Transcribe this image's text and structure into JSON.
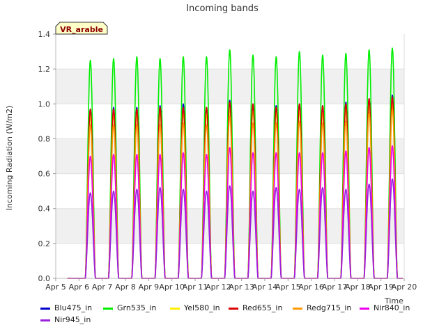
{
  "chart_data": {
    "type": "line",
    "title": "Incoming bands",
    "ylabel": "Incoming Radiation (W/m2)",
    "xlabel": "Time",
    "station_tag": "VR_arable",
    "ylim": [
      0,
      1.4
    ],
    "yticks": [
      "0.0",
      "0.2",
      "0.4",
      "0.6",
      "0.8",
      "1.0",
      "1.2",
      "1.4"
    ],
    "xticks": [
      "Apr 5",
      "Apr 6",
      "Apr 7",
      "Apr 8",
      "Apr 9",
      "Apr 10",
      "Apr 11",
      "Apr 12",
      "Apr 13",
      "Apr 14",
      "Apr 15",
      "Apr 16",
      "Apr 17",
      "Apr 18",
      "Apr 19",
      "Apr 20"
    ],
    "x_start_day": 5,
    "x_end_day": 20,
    "grid": "horizontal bands",
    "legend_position": "bottom",
    "days": [
      6,
      7,
      8,
      9,
      10,
      11,
      12,
      13,
      14,
      15,
      16,
      17,
      18,
      19
    ],
    "series": [
      {
        "name": "Blu475_in",
        "color": "#0000cc",
        "peaks": [
          0.97,
          0.98,
          0.98,
          0.99,
          1.0,
          0.98,
          1.02,
          1.0,
          0.99,
          1.0,
          0.99,
          1.01,
          1.03,
          1.05
        ]
      },
      {
        "name": "Grn535_in",
        "color": "#00ee00",
        "peaks": [
          1.25,
          1.26,
          1.27,
          1.26,
          1.27,
          1.27,
          1.31,
          1.28,
          1.27,
          1.3,
          1.28,
          1.29,
          1.31,
          1.32
        ]
      },
      {
        "name": "Yel580_in",
        "color": "#ffee00",
        "peaks": [
          0.93,
          0.94,
          0.94,
          0.95,
          0.95,
          0.94,
          0.97,
          0.96,
          0.95,
          0.96,
          0.95,
          0.97,
          0.99,
          1.0
        ]
      },
      {
        "name": "Red655_in",
        "color": "#dd0000",
        "peaks": [
          0.97,
          0.97,
          0.97,
          0.98,
          0.98,
          0.98,
          1.01,
          1.0,
          0.98,
          1.0,
          0.99,
          1.0,
          1.03,
          1.04
        ]
      },
      {
        "name": "Redg715_in",
        "color": "#ff9900",
        "peaks": [
          0.88,
          0.88,
          0.88,
          0.88,
          0.89,
          0.88,
          0.93,
          0.89,
          0.89,
          0.9,
          0.89,
          0.9,
          0.95,
          0.97
        ]
      },
      {
        "name": "Nir840_in",
        "color": "#ee00ee",
        "peaks": [
          0.7,
          0.71,
          0.71,
          0.71,
          0.72,
          0.71,
          0.75,
          0.72,
          0.72,
          0.72,
          0.72,
          0.73,
          0.75,
          0.76
        ]
      },
      {
        "name": "Nir945_in",
        "color": "#9922dd",
        "peaks": [
          0.49,
          0.5,
          0.51,
          0.52,
          0.51,
          0.5,
          0.53,
          0.5,
          0.52,
          0.51,
          0.52,
          0.51,
          0.54,
          0.57
        ]
      }
    ]
  }
}
